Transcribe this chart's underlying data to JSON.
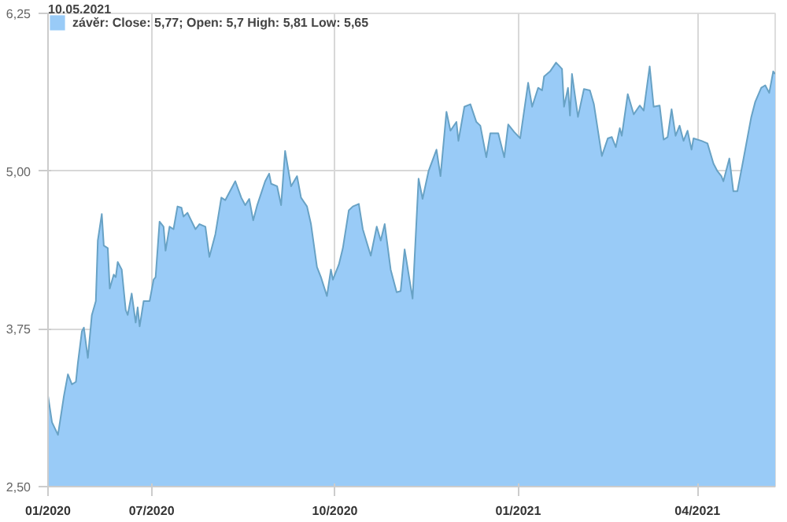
{
  "chart_data": {
    "type": "area",
    "legend_title": "10.05.2021",
    "legend": "top left",
    "grid": true,
    "xlim": [
      "2020-05-10",
      "2021-05-10"
    ],
    "xticks": [
      {
        "value": "2020-05-10",
        "label": "01/2020"
      },
      {
        "value": "2020-07-01",
        "label": "07/2020"
      },
      {
        "value": "2020-10-01",
        "label": "10/2020"
      },
      {
        "value": "2021-01-01",
        "label": "01/2021"
      },
      {
        "value": "2021-04-01",
        "label": "04/2021"
      }
    ],
    "ylim": [
      2.5,
      6.25
    ],
    "yticks": [
      {
        "value": 2.5,
        "label": "2,50"
      },
      {
        "value": 3.75,
        "label": "3,75"
      },
      {
        "value": 5.0,
        "label": "5,00"
      },
      {
        "value": 6.25,
        "label": "6,25"
      }
    ],
    "x": [
      "2020-05-10",
      "2020-05-12",
      "2020-05-15",
      "2020-05-18",
      "2020-05-20",
      "2020-05-22",
      "2020-05-24",
      "2020-05-25",
      "2020-05-27",
      "2020-05-28",
      "2020-05-30",
      "2020-06-01",
      "2020-06-03",
      "2020-06-04",
      "2020-06-06",
      "2020-06-07",
      "2020-06-09",
      "2020-06-10",
      "2020-06-12",
      "2020-06-13",
      "2020-06-14",
      "2020-06-16",
      "2020-06-18",
      "2020-06-19",
      "2020-06-21",
      "2020-06-23",
      "2020-06-24",
      "2020-06-25",
      "2020-06-27",
      "2020-06-30",
      "2020-07-02",
      "2020-07-03",
      "2020-07-05",
      "2020-07-07",
      "2020-07-08",
      "2020-07-10",
      "2020-07-12",
      "2020-07-14",
      "2020-07-16",
      "2020-07-17",
      "2020-07-19",
      "2020-07-23",
      "2020-07-25",
      "2020-07-28",
      "2020-07-30",
      "2020-08-02",
      "2020-08-05",
      "2020-08-07",
      "2020-08-12",
      "2020-08-15",
      "2020-08-17",
      "2020-08-19",
      "2020-08-21",
      "2020-08-23",
      "2020-08-27",
      "2020-08-29",
      "2020-08-30",
      "2020-09-02",
      "2020-09-04",
      "2020-09-06",
      "2020-09-09",
      "2020-09-12",
      "2020-09-14",
      "2020-09-17",
      "2020-09-19",
      "2020-09-22",
      "2020-09-24",
      "2020-09-27",
      "2020-09-29",
      "2020-09-30",
      "2020-10-03",
      "2020-10-05",
      "2020-10-08",
      "2020-10-10",
      "2020-10-13",
      "2020-10-15",
      "2020-10-19",
      "2020-10-22",
      "2020-10-24",
      "2020-10-26",
      "2020-10-29",
      "2020-11-01",
      "2020-11-03",
      "2020-11-05",
      "2020-11-09",
      "2020-11-12",
      "2020-11-14",
      "2020-11-17",
      "2020-11-21",
      "2020-11-23",
      "2020-11-26",
      "2020-11-28",
      "2020-12-01",
      "2020-12-02",
      "2020-12-05",
      "2020-12-08",
      "2020-12-11",
      "2020-12-13",
      "2020-12-16",
      "2020-12-18",
      "2020-12-22",
      "2020-12-25",
      "2020-12-27",
      "2020-12-30",
      "2021-01-02",
      "2021-01-06",
      "2021-01-08",
      "2021-01-11",
      "2021-01-13",
      "2021-01-14",
      "2021-01-17",
      "2021-01-20",
      "2021-01-23",
      "2021-01-24",
      "2021-01-26",
      "2021-01-27",
      "2021-01-28",
      "2021-01-31",
      "2021-02-03",
      "2021-02-06",
      "2021-02-08",
      "2021-02-12",
      "2021-02-15",
      "2021-02-17",
      "2021-02-19",
      "2021-02-21",
      "2021-02-22",
      "2021-02-25",
      "2021-02-28",
      "2021-03-03",
      "2021-03-05",
      "2021-03-08",
      "2021-03-10",
      "2021-03-13",
      "2021-03-15",
      "2021-03-17",
      "2021-03-19",
      "2021-03-21",
      "2021-03-23",
      "2021-03-25",
      "2021-03-27",
      "2021-03-29",
      "2021-03-30",
      "2021-04-03",
      "2021-04-06",
      "2021-04-09",
      "2021-04-11",
      "2021-04-13",
      "2021-04-14",
      "2021-04-17",
      "2021-04-19",
      "2021-04-21",
      "2021-04-24",
      "2021-04-28",
      "2021-04-30",
      "2021-05-03",
      "2021-05-05",
      "2021-05-07",
      "2021-05-09",
      "2021-05-10"
    ],
    "series": [
      {
        "name": "závěr: Close: 5,77; Open: 5,7 High: 5,81 Low: 5,65",
        "color": "#99cbf7",
        "values": [
          3.22,
          3.01,
          2.91,
          3.22,
          3.39,
          3.31,
          3.33,
          3.48,
          3.73,
          3.76,
          3.52,
          3.86,
          3.97,
          4.45,
          4.66,
          4.41,
          4.39,
          4.07,
          4.18,
          4.16,
          4.28,
          4.22,
          3.9,
          3.86,
          4.03,
          3.8,
          3.92,
          3.77,
          3.97,
          3.97,
          4.14,
          4.16,
          4.6,
          4.56,
          4.37,
          4.56,
          4.54,
          4.72,
          4.71,
          4.64,
          4.67,
          4.54,
          4.58,
          4.56,
          4.32,
          4.5,
          4.79,
          4.77,
          4.92,
          4.79,
          4.73,
          4.78,
          4.61,
          4.73,
          4.92,
          4.98,
          4.9,
          4.88,
          4.73,
          5.16,
          4.88,
          4.96,
          4.79,
          4.72,
          4.58,
          4.24,
          4.16,
          4.01,
          4.22,
          4.14,
          4.26,
          4.39,
          4.69,
          4.72,
          4.74,
          4.54,
          4.33,
          4.56,
          4.45,
          4.58,
          4.22,
          4.04,
          4.05,
          4.38,
          3.99,
          4.94,
          4.78,
          5.0,
          5.17,
          4.96,
          5.47,
          5.32,
          5.39,
          5.24,
          5.51,
          5.53,
          5.39,
          5.36,
          5.11,
          5.3,
          5.3,
          5.11,
          5.37,
          5.31,
          5.26,
          5.7,
          5.51,
          5.66,
          5.64,
          5.75,
          5.79,
          5.86,
          5.81,
          5.51,
          5.66,
          5.44,
          5.77,
          5.43,
          5.65,
          5.64,
          5.53,
          5.12,
          5.26,
          5.27,
          5.19,
          5.34,
          5.28,
          5.61,
          5.45,
          5.52,
          5.48,
          5.83,
          5.51,
          5.52,
          5.25,
          5.27,
          5.49,
          5.28,
          5.36,
          5.24,
          5.32,
          5.17,
          5.26,
          5.24,
          5.22,
          5.06,
          5.0,
          4.96,
          4.92,
          5.1,
          4.84,
          4.84,
          5.09,
          5.43,
          5.55,
          5.66,
          5.68,
          5.62,
          5.79,
          5.77
        ]
      }
    ]
  }
}
